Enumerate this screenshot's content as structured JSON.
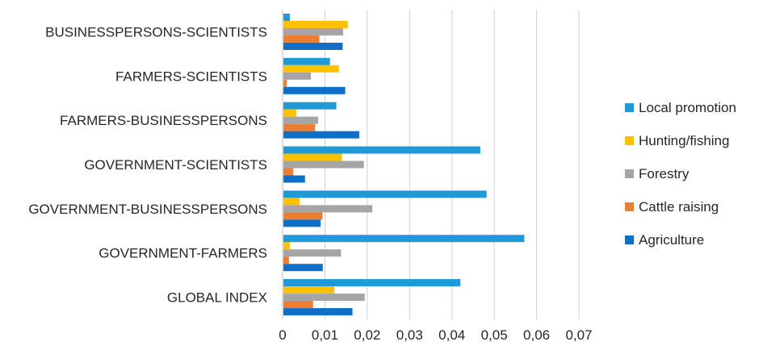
{
  "chart_data": {
    "type": "bar",
    "orientation": "horizontal",
    "title": "",
    "xlabel": "",
    "ylabel": "",
    "xlim": [
      0,
      0.07
    ],
    "x_ticks": [
      "0",
      "0,01",
      "0,02",
      "0,03",
      "0,04",
      "0,05",
      "0,06",
      "0,07"
    ],
    "grid": true,
    "legend_position": "right",
    "categories": [
      "BUSINESSPERSONS-SCIENTISTS",
      "FARMERS-SCIENTISTS",
      "FARMERS-BUSINESSPERSONS",
      "GOVERNMENT-SCIENTISTS",
      "GOVERNMENT-BUSINESSPERSONS",
      "GOVERNMENT-FARMERS",
      "GLOBAL INDEX"
    ],
    "series": [
      {
        "name": "Local promotion",
        "color": "#1f9ad6",
        "values": [
          0.0017,
          0.0112,
          0.0127,
          0.0467,
          0.0482,
          0.0571,
          0.042
        ]
      },
      {
        "name": "Hunting/fishing",
        "color": "#ffc000",
        "values": [
          0.0154,
          0.0133,
          0.0032,
          0.014,
          0.004,
          0.0017,
          0.0122
        ]
      },
      {
        "name": "Forestry",
        "color": "#a5a5a5",
        "values": [
          0.0143,
          0.0067,
          0.0084,
          0.0192,
          0.0212,
          0.0138,
          0.0194
        ]
      },
      {
        "name": "Cattle raising",
        "color": "#ed7d31",
        "values": [
          0.0087,
          0.001,
          0.0077,
          0.0025,
          0.0094,
          0.0015,
          0.0072
        ]
      },
      {
        "name": "Agriculture",
        "color": "#0f6fc6",
        "values": [
          0.0142,
          0.0148,
          0.0181,
          0.0053,
          0.009,
          0.0095,
          0.0165
        ]
      }
    ]
  }
}
